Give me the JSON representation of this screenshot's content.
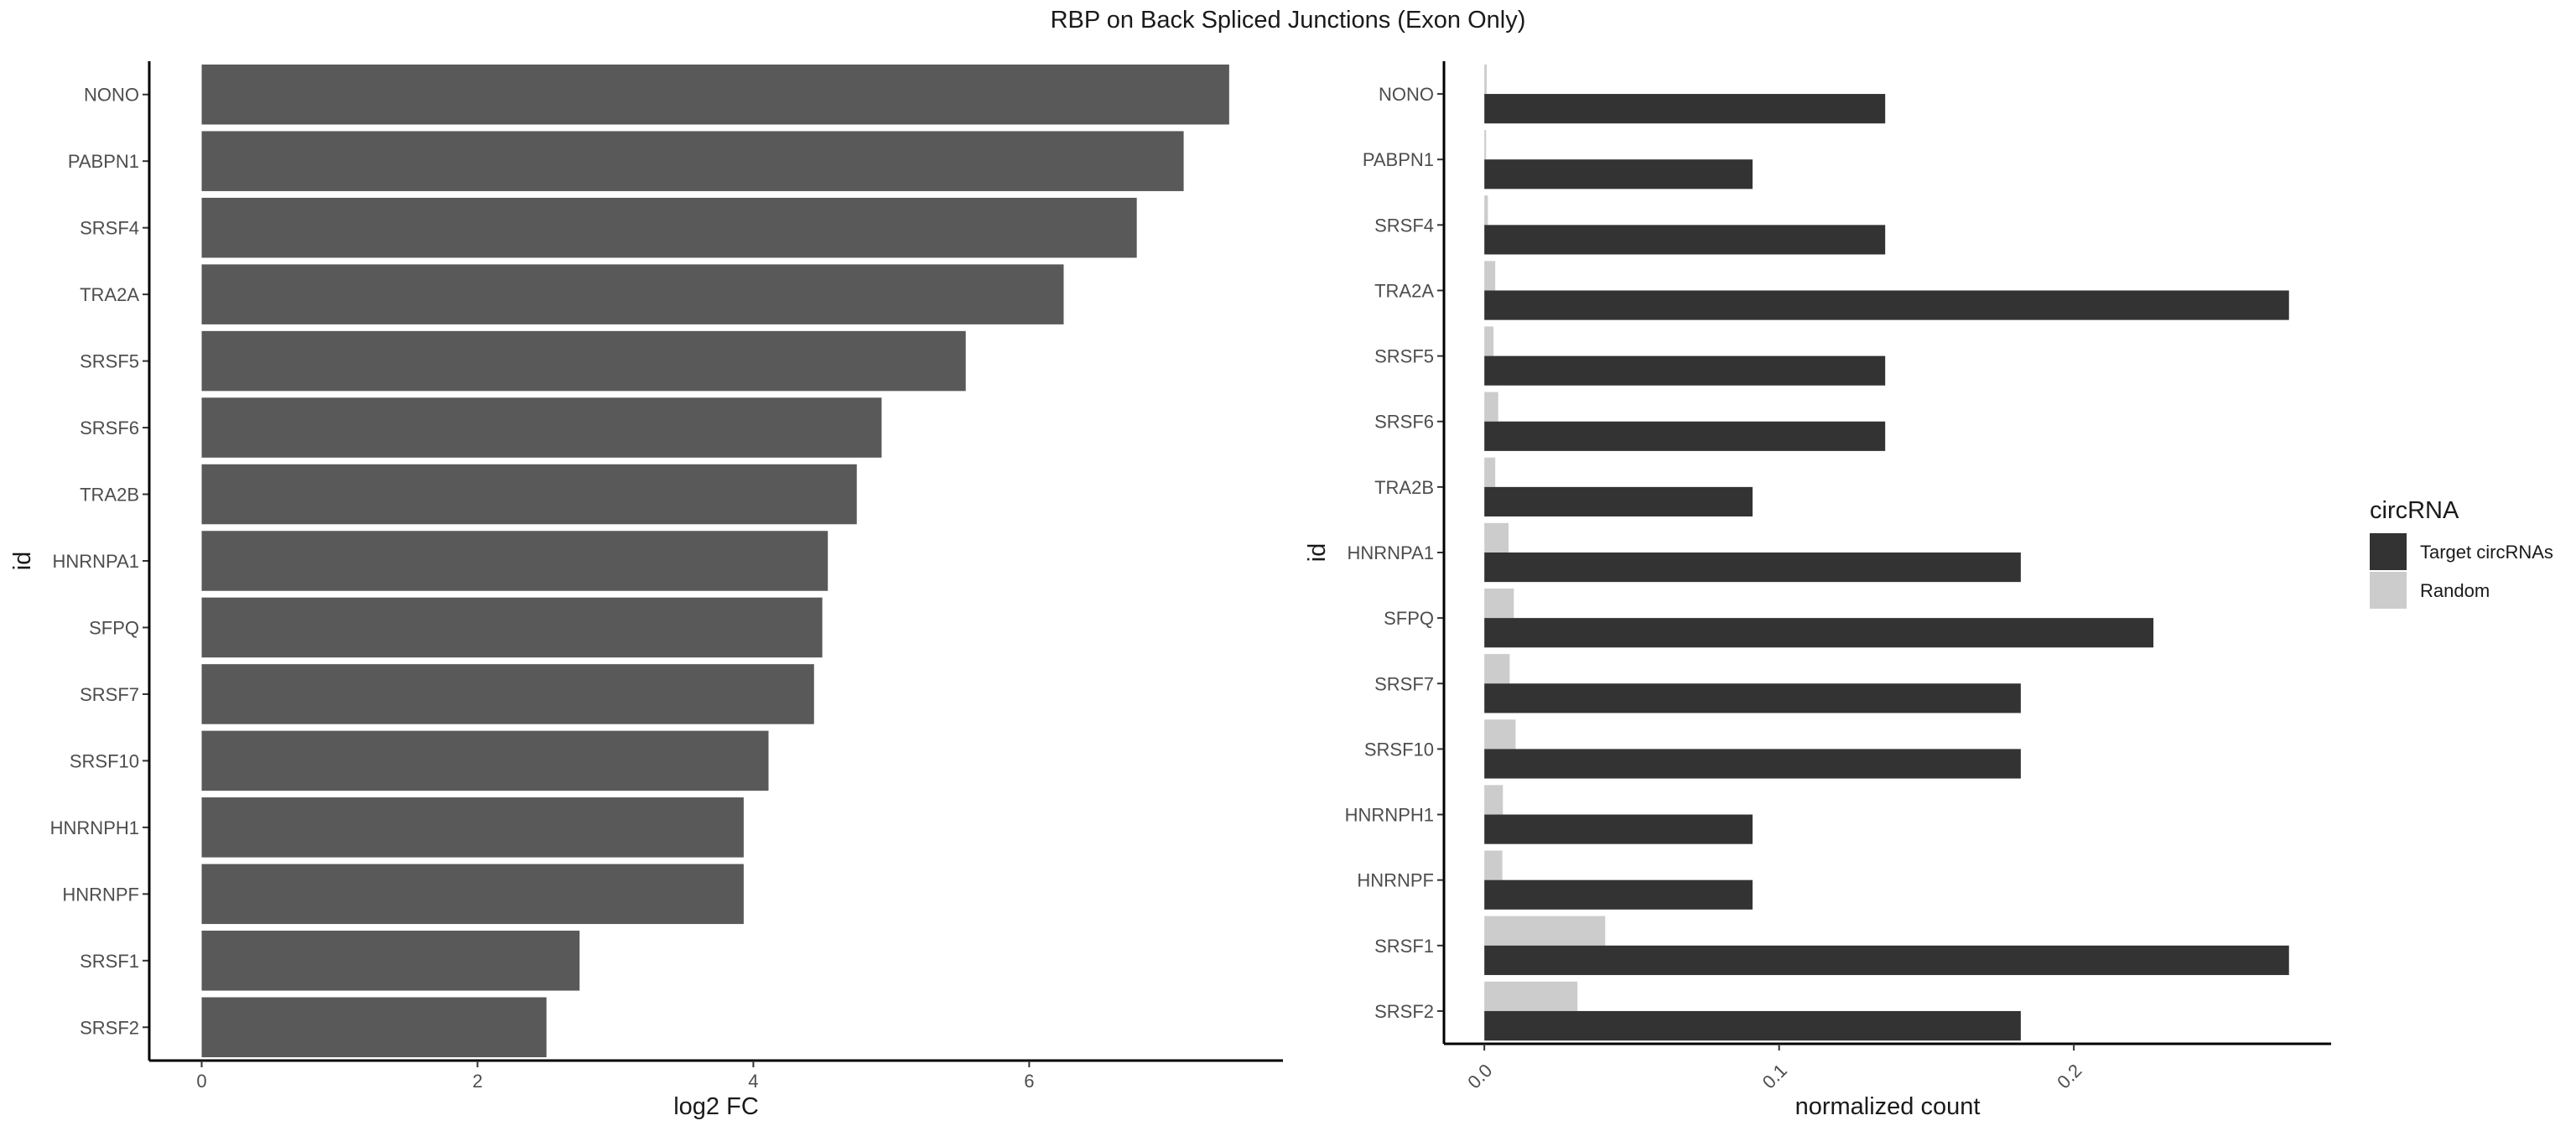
{
  "title": "RBP on Back Spliced Junctions (Exon Only)",
  "chart_data": [
    {
      "type": "bar",
      "orientation": "horizontal",
      "categories": [
        "NONO",
        "PABPN1",
        "SRSF4",
        "TRA2A",
        "SRSF5",
        "SRSF6",
        "TRA2B",
        "HNRNPA1",
        "SFPQ",
        "SRSF7",
        "SRSF10",
        "HNRNPH1",
        "HNRNPF",
        "SRSF1",
        "SRSF2"
      ],
      "values": [
        7.45,
        7.12,
        6.78,
        6.25,
        5.54,
        4.93,
        4.75,
        4.54,
        4.5,
        4.44,
        4.11,
        3.93,
        3.93,
        2.74,
        2.5
      ],
      "xlabel": "log2 FC",
      "ylabel": "id",
      "xlim": [
        -0.38,
        7.84
      ],
      "xticks": [
        "0",
        "2",
        "4",
        "6"
      ],
      "grid": false,
      "bar_color": "#595959"
    },
    {
      "type": "bar",
      "orientation": "horizontal",
      "grouped": true,
      "categories": [
        "NONO",
        "PABPN1",
        "SRSF4",
        "TRA2A",
        "SRSF5",
        "SRSF6",
        "TRA2B",
        "HNRNPA1",
        "SFPQ",
        "SRSF7",
        "SRSF10",
        "HNRNPH1",
        "HNRNPF",
        "SRSF1",
        "SRSF2"
      ],
      "series": [
        {
          "name": "Target circRNAs",
          "color": "#333333",
          "values": [
            0.136,
            0.091,
            0.136,
            0.273,
            0.136,
            0.136,
            0.091,
            0.182,
            0.227,
            0.182,
            0.182,
            0.091,
            0.091,
            0.273,
            0.182
          ]
        },
        {
          "name": "Random",
          "color": "#cccccc",
          "values": [
            0.0008,
            0.0006,
            0.0012,
            0.0037,
            0.0031,
            0.0047,
            0.0037,
            0.0082,
            0.01,
            0.0086,
            0.0106,
            0.0063,
            0.0061,
            0.041,
            0.0316
          ]
        }
      ],
      "xlabel": "normalized count",
      "ylabel": "id",
      "xlim": [
        -0.0137,
        0.2873
      ],
      "xticks": [
        "0.0",
        "0.1",
        "0.2"
      ],
      "grid": false,
      "legend": {
        "title": "circRNA",
        "position": "right"
      }
    }
  ]
}
